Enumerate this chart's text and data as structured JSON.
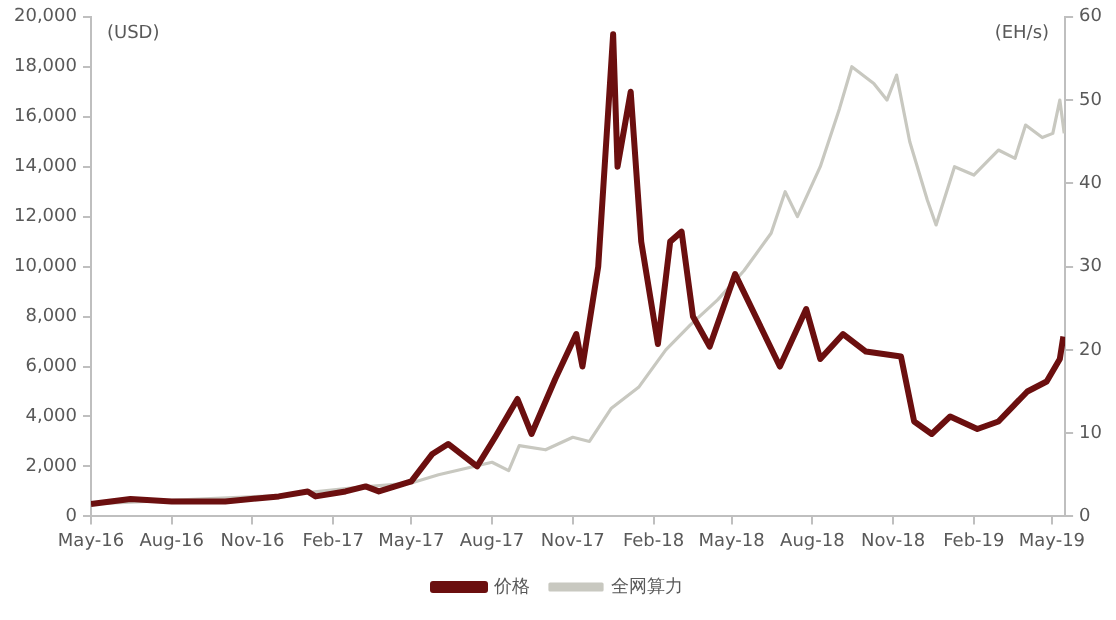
{
  "chart_data": {
    "type": "line",
    "ylabel": "(USD)",
    "y2label": "(EH/s)",
    "xlim": [
      "2016-05",
      "2019-05-16"
    ],
    "xticks": [
      {
        "value": "2016-05",
        "label": "May-16"
      },
      {
        "value": "2016-08",
        "label": "Aug-16"
      },
      {
        "value": "2016-11",
        "label": "Nov-16"
      },
      {
        "value": "2017-02",
        "label": "Feb-17"
      },
      {
        "value": "2017-05",
        "label": "May-17"
      },
      {
        "value": "2017-08",
        "label": "Aug-17"
      },
      {
        "value": "2017-11",
        "label": "Nov-17"
      },
      {
        "value": "2018-02",
        "label": "Feb-18"
      },
      {
        "value": "2018-05",
        "label": "May-18"
      },
      {
        "value": "2018-08",
        "label": "Aug-18"
      },
      {
        "value": "2018-11",
        "label": "Nov-18"
      },
      {
        "value": "2019-02",
        "label": "Feb-19"
      },
      {
        "value": "2019-05",
        "label": "May-19"
      }
    ],
    "ylim": [
      0,
      20000
    ],
    "yticks": [
      {
        "value": 0,
        "label": "0"
      },
      {
        "value": 2000,
        "label": "2,000"
      },
      {
        "value": 4000,
        "label": "4,000"
      },
      {
        "value": 6000,
        "label": "6,000"
      },
      {
        "value": 8000,
        "label": "8,000"
      },
      {
        "value": 10000,
        "label": "10,000"
      },
      {
        "value": 12000,
        "label": "12,000"
      },
      {
        "value": 14000,
        "label": "14,000"
      },
      {
        "value": 16000,
        "label": "16,000"
      },
      {
        "value": 18000,
        "label": "18,000"
      },
      {
        "value": 20000,
        "label": "20,000"
      }
    ],
    "y2lim": [
      0,
      60
    ],
    "y2ticks": [
      0,
      10,
      20,
      30,
      40,
      50,
      60
    ],
    "grid": false,
    "legend": "bottom",
    "marker": "none",
    "line_style": "solid",
    "series": [
      {
        "name": "价格",
        "color": "#6b0f0f",
        "x": [
          "2016-05-01",
          "2016-06-15",
          "2016-08-01",
          "2016-10-01",
          "2016-12-01",
          "2017-01-03",
          "2017-01-12",
          "2017-02-15",
          "2017-03-10",
          "2017-03-25",
          "2017-05-01",
          "2017-05-25",
          "2017-06-12",
          "2017-07-15",
          "2017-08-05",
          "2017-08-30",
          "2017-09-15",
          "2017-10-12",
          "2017-11-05",
          "2017-11-12",
          "2017-11-30",
          "2017-12-17",
          "2017-12-22",
          "2018-01-06",
          "2018-01-18",
          "2018-02-06",
          "2018-02-20",
          "2018-03-05",
          "2018-03-18",
          "2018-04-06",
          "2018-05-05",
          "2018-06-25",
          "2018-07-25",
          "2018-08-10",
          "2018-09-05",
          "2018-10-01",
          "2018-11-10",
          "2018-11-25",
          "2018-12-15",
          "2019-01-05",
          "2019-02-05",
          "2019-03-01",
          "2019-04-03",
          "2019-04-25",
          "2019-05-10",
          "2019-05-14"
        ],
        "values": [
          500,
          700,
          600,
          600,
          800,
          1000,
          800,
          1000,
          1200,
          1000,
          1400,
          2500,
          2900,
          2000,
          3200,
          4700,
          3300,
          5500,
          7300,
          6000,
          10000,
          19300,
          14000,
          17000,
          11000,
          6900,
          11000,
          11400,
          8000,
          6800,
          9700,
          6000,
          8300,
          6300,
          7300,
          6600,
          6400,
          3800,
          3300,
          4000,
          3500,
          3800,
          5000,
          5400,
          6300,
          7200
        ]
      },
      {
        "name": "全网算力",
        "color": "#c8c8c0",
        "axis": "y2",
        "x": [
          "2016-05-01",
          "2016-09-01",
          "2016-12-01",
          "2017-03-01",
          "2017-05-01",
          "2017-06-01",
          "2017-08-01",
          "2017-08-20",
          "2017-09-01",
          "2017-10-01",
          "2017-11-01",
          "2017-11-20",
          "2017-12-15",
          "2018-01-15",
          "2018-02-15",
          "2018-03-15",
          "2018-04-15",
          "2018-05-15",
          "2018-06-15",
          "2018-07-01",
          "2018-07-15",
          "2018-08-10",
          "2018-09-01",
          "2018-09-15",
          "2018-10-10",
          "2018-10-25",
          "2018-11-05",
          "2018-11-20",
          "2018-12-10",
          "2018-12-20",
          "2019-01-10",
          "2019-02-01",
          "2019-03-01",
          "2019-03-20",
          "2019-04-01",
          "2019-04-20",
          "2019-05-02",
          "2019-05-10",
          "2019-05-15"
        ],
        "values": [
          1.5,
          null,
          2.5,
          3.5,
          4,
          5,
          6.5,
          5.5,
          8.5,
          8,
          9.5,
          9,
          13,
          15.5,
          20,
          23,
          26,
          29.5,
          34,
          39,
          36,
          42,
          49,
          54,
          52,
          50,
          53,
          45,
          38,
          35,
          42,
          41,
          44,
          43,
          47,
          45.5,
          46,
          50,
          46
        ]
      }
    ]
  }
}
